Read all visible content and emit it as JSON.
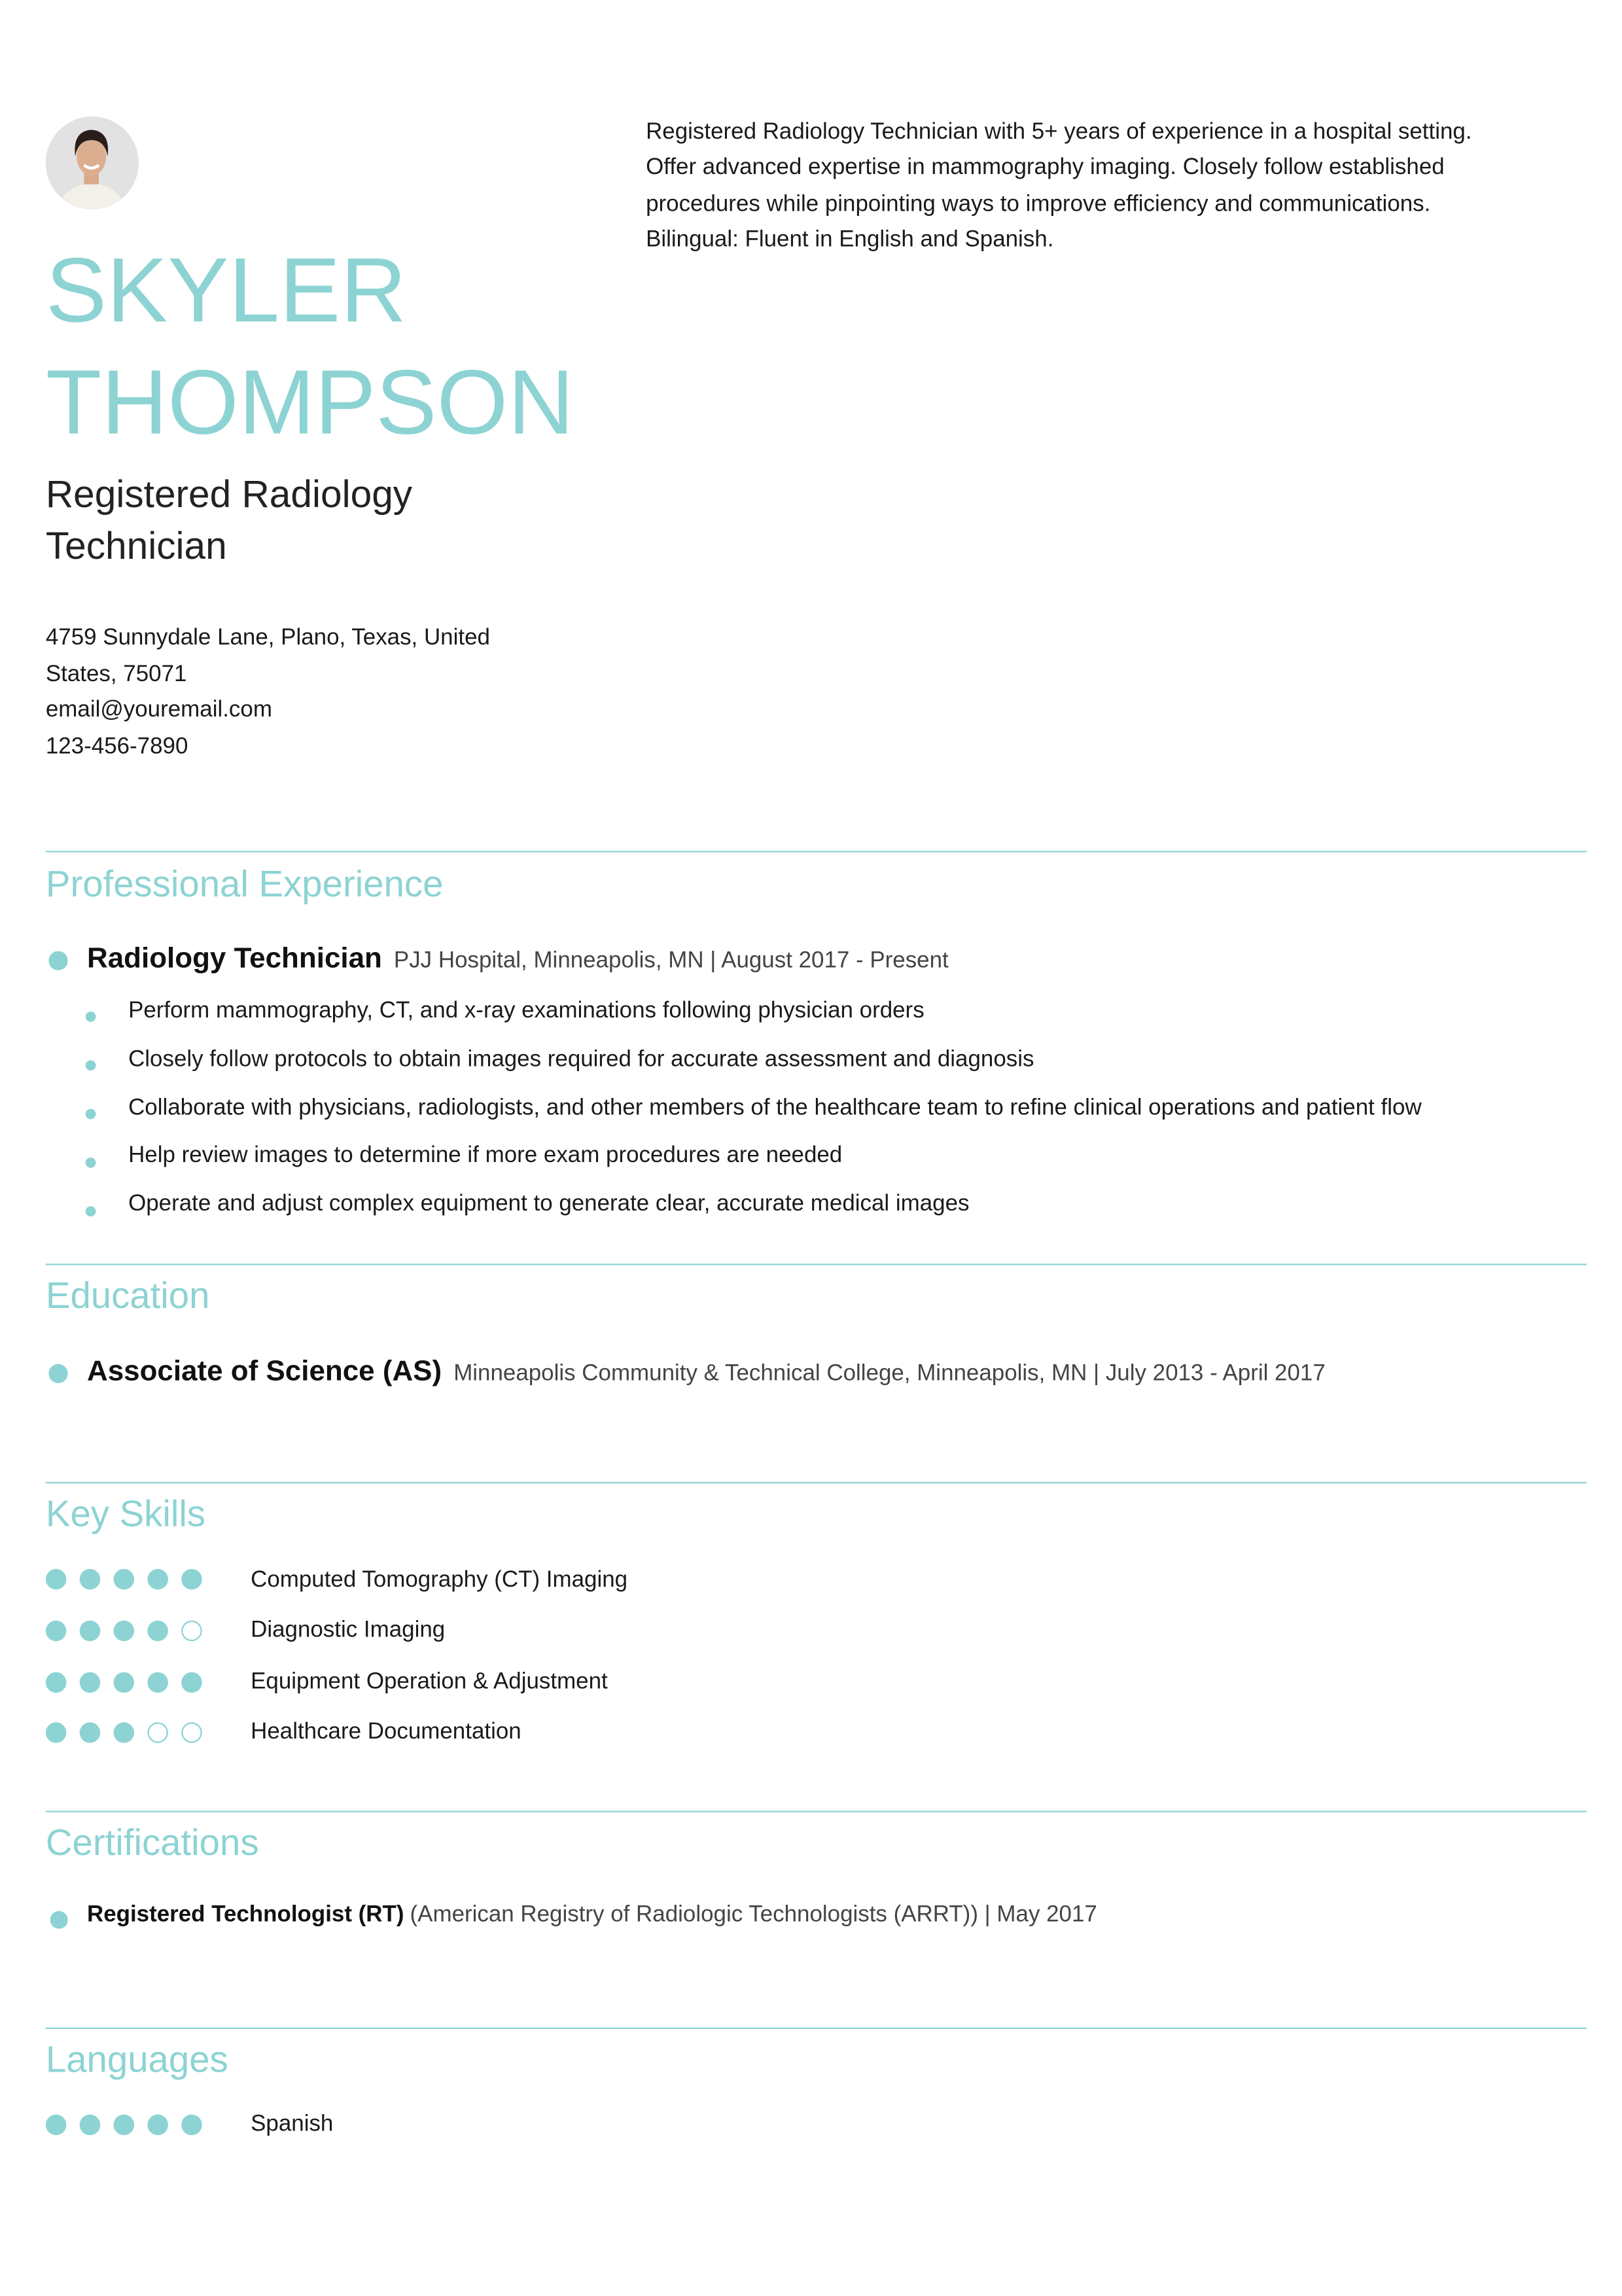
{
  "accent_color": "#8dd3d3",
  "header": {
    "first_name": "SKYLER",
    "last_name": "THOMPSON",
    "title_line1": "Registered Radiology",
    "title_line2": "Technician",
    "address_line1": "4759 Sunnydale Lane, Plano, Texas, United",
    "address_line2": "States, 75071",
    "email": "email@youremail.com",
    "phone": "123-456-7890",
    "summary": [
      "Registered Radiology Technician with 5+ years of experience in a hospital setting.",
      "Offer advanced expertise in mammography imaging. Closely follow established",
      "procedures while pinpointing ways to improve efficiency and communications.",
      "Bilingual: Fluent in English and Spanish."
    ]
  },
  "experience": {
    "heading": "Professional Experience",
    "jobs": [
      {
        "title": "Radiology Technician",
        "details": "PJJ Hospital, Minneapolis, MN | August 2017 - Present",
        "bullets": [
          "Perform mammography, CT, and x-ray examinations following physician orders",
          "Closely follow protocols to obtain images required for accurate assessment and diagnosis",
          "Collaborate with physicians, radiologists, and other members of the healthcare team to refine clinical operations and patient flow",
          "Help review images to determine if more exam procedures are needed",
          "Operate and adjust complex equipment to generate clear, accurate medical images"
        ]
      }
    ]
  },
  "education": {
    "heading": "Education",
    "entries": [
      {
        "degree": "Associate of Science (AS)",
        "details": "Minneapolis Community & Technical College, Minneapolis, MN | July 2013 - April 2017"
      }
    ]
  },
  "skills": {
    "heading": "Key Skills",
    "items": [
      {
        "name": "Computed Tomography (CT) Imaging",
        "rating": 5,
        "max": 5
      },
      {
        "name": "Diagnostic Imaging",
        "rating": 4,
        "max": 5
      },
      {
        "name": "Equipment Operation & Adjustment",
        "rating": 5,
        "max": 5
      },
      {
        "name": "Healthcare Documentation",
        "rating": 3,
        "max": 5
      }
    ]
  },
  "certifications": {
    "heading": "Certifications",
    "entries": [
      {
        "name": "Registered Technologist (RT)",
        "details": "(American Registry of Radiologic Technologists (ARRT)) | May 2017"
      }
    ]
  },
  "languages": {
    "heading": "Languages",
    "items": [
      {
        "name": "Spanish",
        "rating": 5,
        "max": 5
      }
    ]
  }
}
